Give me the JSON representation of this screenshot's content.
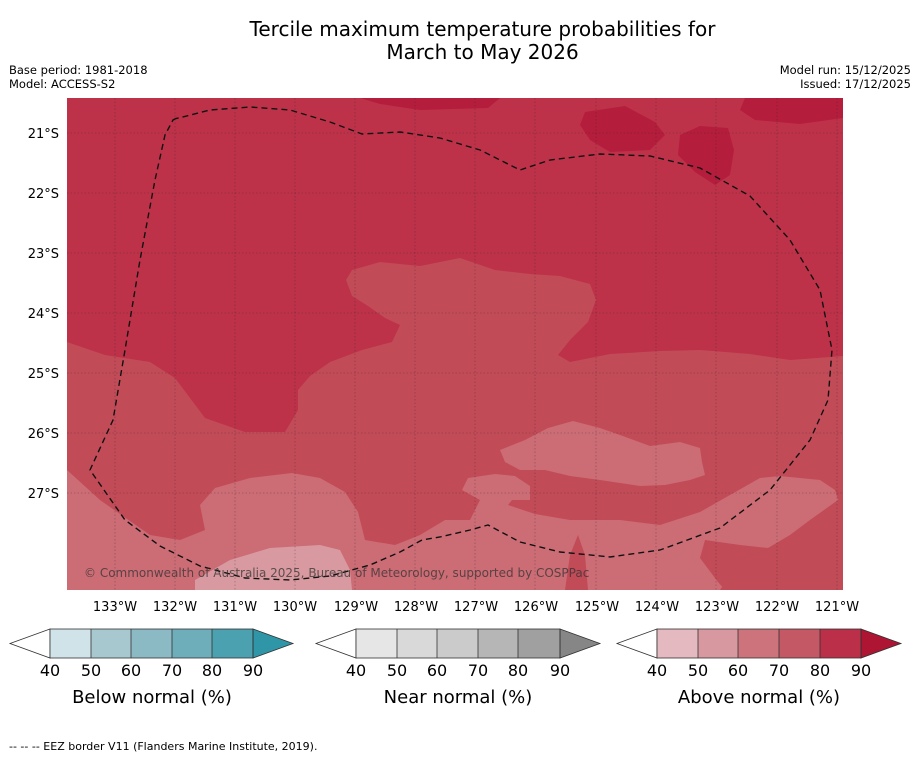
{
  "title": {
    "line1": "Tercile maximum temperature probabilities for",
    "line2": "March to May 2026"
  },
  "meta": {
    "base_period": "Base period: 1981-2018",
    "model": "Model: ACCESS-S2",
    "model_run": "Model run: 15/12/2025",
    "issued": "Issued: 17/12/2025"
  },
  "map": {
    "lat_labels": [
      "21°S",
      "22°S",
      "23°S",
      "24°S",
      "25°S",
      "26°S",
      "27°S"
    ],
    "lon_labels": [
      "133°W",
      "132°W",
      "131°W",
      "130°W",
      "129°W",
      "128°W",
      "127°W",
      "126°W",
      "125°W",
      "124°W",
      "123°W",
      "122°W",
      "121°W"
    ],
    "copyright": "© Commonwealth of Australia 2025, Bureau of Meteorology, supported by COSPPac",
    "colors": {
      "above_90": "#b51d3d",
      "above_80": "#bd3249",
      "above_70": "#c24b58",
      "above_60": "#cc6c75",
      "above_50": "#d89aa0"
    }
  },
  "colorbars": [
    {
      "label": "Below normal (%)",
      "ticks": [
        "40",
        "50",
        "60",
        "70",
        "80",
        "90"
      ],
      "colors": [
        "#cfe3e8",
        "#a8c8cf",
        "#8bbac4",
        "#6eaebb",
        "#4ba1b0",
        "#2f96a8"
      ]
    },
    {
      "label": "Near normal (%)",
      "ticks": [
        "40",
        "50",
        "60",
        "70",
        "80",
        "90"
      ],
      "colors": [
        "#e6e6e6",
        "#d9d9d9",
        "#cbcbcb",
        "#b6b6b6",
        "#a0a0a0",
        "#868686"
      ]
    },
    {
      "label": "Above normal (%)",
      "ticks": [
        "40",
        "50",
        "60",
        "70",
        "80",
        "90"
      ],
      "colors": [
        "#e4b9bf",
        "#d7989f",
        "#cc737c",
        "#c45864",
        "#bc2f49",
        "#ad1532"
      ]
    }
  ],
  "footnote": "--  --  -- EEZ border V11 (Flanders Marine Institute, 2019)."
}
